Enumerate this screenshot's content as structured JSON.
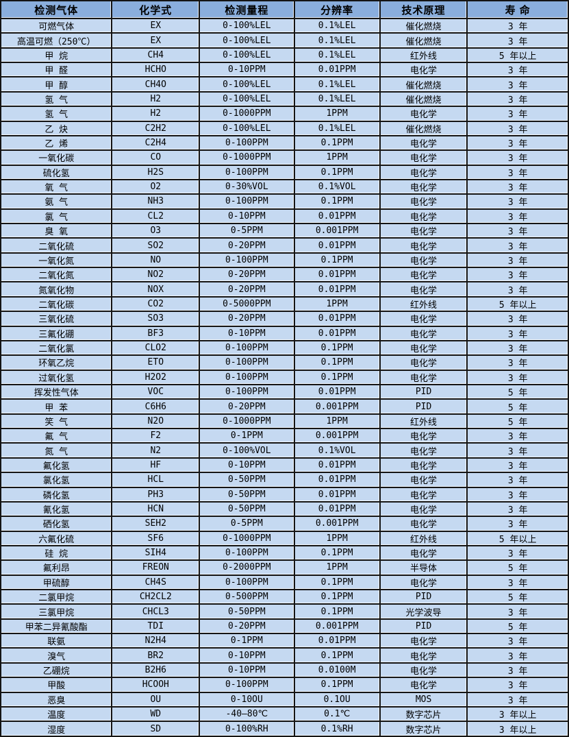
{
  "table": {
    "headers": [
      "检测气体",
      "化学式",
      "检测量程",
      "分辨率",
      "技术原理",
      "寿 命"
    ],
    "rows": [
      [
        "可燃气体",
        "EX",
        "0-100%LEL",
        "0.1%LEL",
        "催化燃烧",
        "3 年"
      ],
      [
        "高温可燃（250℃）",
        "EX",
        "0-100%LEL",
        "0.1%LEL",
        "催化燃烧",
        "3 年"
      ],
      [
        "甲 烷",
        "CH4",
        "0-100%LEL",
        "0.1%LEL",
        "红外线",
        "5 年以上"
      ],
      [
        "甲 醛",
        "HCHO",
        "0-10PPM",
        "0.01PPM",
        "电化学",
        "3 年"
      ],
      [
        "甲 醇",
        "CH4O",
        "0-100%LEL",
        "0.1%LEL",
        "催化燃烧",
        "3 年"
      ],
      [
        "氢 气",
        "H2",
        "0-100%LEL",
        "0.1%LEL",
        "催化燃烧",
        "3 年"
      ],
      [
        "氢 气",
        "H2",
        "0-1000PPM",
        "1PPM",
        "电化学",
        "3 年"
      ],
      [
        "乙 炔",
        "C2H2",
        "0-100%LEL",
        "0.1%LEL",
        "催化燃烧",
        "3 年"
      ],
      [
        "乙 烯",
        "C2H4",
        "0-100PPM",
        "0.1PPM",
        "电化学",
        "3 年"
      ],
      [
        "一氧化碳",
        "CO",
        "0-1000PPM",
        "1PPM",
        "电化学",
        "3 年"
      ],
      [
        "硫化氢",
        "H2S",
        "0-100PPM",
        "0.1PPM",
        "电化学",
        "3 年"
      ],
      [
        "氧 气",
        "O2",
        "0-30%VOL",
        "0.1%VOL",
        "电化学",
        "3 年"
      ],
      [
        "氨 气",
        "NH3",
        "0-100PPM",
        "0.1PPM",
        "电化学",
        "3 年"
      ],
      [
        "氯 气",
        "CL2",
        "0-10PPM",
        "0.01PPM",
        "电化学",
        "3 年"
      ],
      [
        "臭 氧",
        "O3",
        "0-5PPM",
        "0.001PPM",
        "电化学",
        "3 年"
      ],
      [
        "二氧化硫",
        "SO2",
        "0-20PPM",
        "0.01PPM",
        "电化学",
        "3 年"
      ],
      [
        "一氧化氮",
        "NO",
        "0-100PPM",
        "0.1PPM",
        "电化学",
        "3 年"
      ],
      [
        "二氧化氮",
        "NO2",
        "0-20PPM",
        "0.01PPM",
        "电化学",
        "3 年"
      ],
      [
        "氮氧化物",
        "NOX",
        "0-20PPM",
        "0.01PPM",
        "电化学",
        "3 年"
      ],
      [
        "二氧化碳",
        "CO2",
        "0-5000PPM",
        "1PPM",
        "红外线",
        "5 年以上"
      ],
      [
        "三氧化硫",
        "SO3",
        "0-20PPM",
        "0.01PPM",
        "电化学",
        "3 年"
      ],
      [
        "三氟化硼",
        "BF3",
        "0-10PPM",
        "0.01PPM",
        "电化学",
        "3 年"
      ],
      [
        "二氧化氯",
        "CLO2",
        "0-100PPM",
        "0.1PPM",
        "电化学",
        "3 年"
      ],
      [
        "环氧乙烷",
        "ETO",
        "0-100PPM",
        "0.1PPM",
        "电化学",
        "3 年"
      ],
      [
        "过氧化氢",
        "H2O2",
        "0-100PPM",
        "0.1PPM",
        "电化学",
        "3 年"
      ],
      [
        "挥发性气体",
        "VOC",
        "0-100PPM",
        "0.01PPM",
        "PID",
        "5 年"
      ],
      [
        "甲 苯",
        "C6H6",
        "0-20PPM",
        "0.001PPM",
        "PID",
        "5 年"
      ],
      [
        "笑 气",
        "N2O",
        "0-1000PPM",
        "1PPM",
        "红外线",
        "5 年"
      ],
      [
        "氟 气",
        "F2",
        "0-1PPM",
        "0.001PPM",
        "电化学",
        "3 年"
      ],
      [
        "氮 气",
        "N2",
        "0-100%VOL",
        "0.1%VOL",
        "电化学",
        "3 年"
      ],
      [
        "氟化氢",
        "HF",
        "0-10PPM",
        "0.01PPM",
        "电化学",
        "3 年"
      ],
      [
        "氯化氢",
        "HCL",
        "0-50PPM",
        "0.01PPM",
        "电化学",
        "3 年"
      ],
      [
        "磷化氢",
        "PH3",
        "0-50PPM",
        "0.01PPM",
        "电化学",
        "3 年"
      ],
      [
        "氰化氢",
        "HCN",
        "0-50PPM",
        "0.01PPM",
        "电化学",
        "3 年"
      ],
      [
        "硒化氢",
        "SEH2",
        "0-5PPM",
        "0.001PPM",
        "电化学",
        "3 年"
      ],
      [
        "六氟化硫",
        "SF6",
        "0-1000PPM",
        "1PPM",
        "红外线",
        "5 年以上"
      ],
      [
        "硅 烷",
        "SIH4",
        "0-100PPM",
        "0.1PPM",
        "电化学",
        "3 年"
      ],
      [
        "氟利昂",
        "FREON",
        "0-2000PPM",
        "1PPM",
        "半导体",
        "5 年"
      ],
      [
        "甲硫醇",
        "CH4S",
        "0-100PPM",
        "0.1PPM",
        "电化学",
        "3 年"
      ],
      [
        "二氯甲烷",
        "CH2CL2",
        "0-500PPM",
        "0.1PPM",
        "PID",
        "5 年"
      ],
      [
        "三氯甲烷",
        "CHCL3",
        "0-50PPM",
        "0.1PPM",
        "光学波导",
        "3 年"
      ],
      [
        "甲苯二异氰酸酯",
        "TDI",
        "0-20PPM",
        "0.001PPM",
        "PID",
        "5 年"
      ],
      [
        "联氨",
        "N2H4",
        "0-1PPM",
        "0.01PPM",
        "电化学",
        "3 年"
      ],
      [
        "溴气",
        "BR2",
        "0-10PPM",
        "0.1PPM",
        "电化学",
        "3 年"
      ],
      [
        "乙硼烷",
        "B2H6",
        "0-10PPM",
        "0.0100M",
        "电化学",
        "3 年"
      ],
      [
        "甲酸",
        "HCOOH",
        "0-100PPM",
        "0.1PPM",
        "电化学",
        "3 年"
      ],
      [
        "恶臭",
        "OU",
        "0-10OU",
        "0.1OU",
        "MOS",
        "3 年"
      ],
      [
        "温度",
        "WD",
        "-40—80℃",
        "0.1℃",
        "数字芯片",
        "3 年以上"
      ],
      [
        "湿度",
        "SD",
        "0-100%RH",
        "0.1%RH",
        "数字芯片",
        "3 年以上"
      ]
    ]
  },
  "colors": {
    "header_bg": "#8aaedd",
    "row_bg": "#c5d9f1",
    "grid_border": "#141414",
    "text": "#000000"
  }
}
